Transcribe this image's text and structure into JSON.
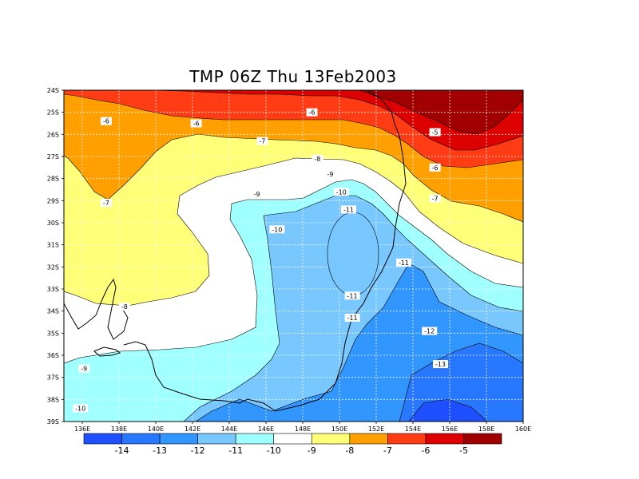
{
  "title": "TMP 06Z Thu 13Feb2003",
  "chart_data": {
    "type": "contour-map",
    "variable": "TMP",
    "lon_range": [
      135,
      160
    ],
    "lat_range": [
      -39,
      -24
    ],
    "lon_ticks": [
      "136E",
      "138E",
      "140E",
      "142E",
      "144E",
      "146E",
      "148E",
      "150E",
      "152E",
      "154E",
      "156E",
      "158E",
      "160E"
    ],
    "lat_ticks": [
      "24S",
      "25S",
      "26S",
      "27S",
      "28S",
      "29S",
      "30S",
      "31S",
      "32S",
      "33S",
      "34S",
      "35S",
      "36S",
      "37S",
      "38S",
      "39S"
    ],
    "grid": true,
    "colorbar": {
      "labels": [
        "-14",
        "-13",
        "-12",
        "-11",
        "-10",
        "-9",
        "-8",
        "-7",
        "-6",
        "-5"
      ],
      "colors": [
        "#1e50ff",
        "#2878ff",
        "#3296ff",
        "#78c8ff",
        "#a0ffff",
        "#ffffff",
        "#ffff78",
        "#ffa000",
        "#ff3c14",
        "#dc0000",
        "#a00000"
      ]
    },
    "contour_labels": [
      {
        "text": "-6",
        "lon": 137.3,
        "lat": -25.4
      },
      {
        "text": "-6",
        "lon": 142.2,
        "lat": -25.5
      },
      {
        "text": "-6",
        "lon": 148.5,
        "lat": -25.0
      },
      {
        "text": "-5",
        "lon": 155.2,
        "lat": -25.9
      },
      {
        "text": "-7",
        "lon": 145.8,
        "lat": -26.3
      },
      {
        "text": "-6",
        "lon": 155.2,
        "lat": -27.5
      },
      {
        "text": "-8",
        "lon": 148.8,
        "lat": -27.1
      },
      {
        "text": "-9",
        "lon": 149.5,
        "lat": -27.8
      },
      {
        "text": "-10",
        "lon": 150.1,
        "lat": -28.6
      },
      {
        "text": "-9",
        "lon": 145.5,
        "lat": -28.7
      },
      {
        "text": "-7",
        "lon": 137.3,
        "lat": -29.1
      },
      {
        "text": "-7",
        "lon": 155.2,
        "lat": -28.9
      },
      {
        "text": "-11",
        "lon": 150.5,
        "lat": -29.4
      },
      {
        "text": "-10",
        "lon": 146.6,
        "lat": -30.3
      },
      {
        "text": "-11",
        "lon": 153.5,
        "lat": -31.8
      },
      {
        "text": "-8",
        "lon": 138.3,
        "lat": -33.8
      },
      {
        "text": "-11",
        "lon": 150.7,
        "lat": -33.3
      },
      {
        "text": "-11",
        "lon": 150.7,
        "lat": -34.3
      },
      {
        "text": "-12",
        "lon": 154.9,
        "lat": -34.9
      },
      {
        "text": "-13",
        "lon": 155.5,
        "lat": -36.4
      },
      {
        "text": "-9",
        "lon": 136.1,
        "lat": -36.6
      },
      {
        "text": "-10",
        "lon": 135.9,
        "lat": -38.4
      }
    ]
  }
}
